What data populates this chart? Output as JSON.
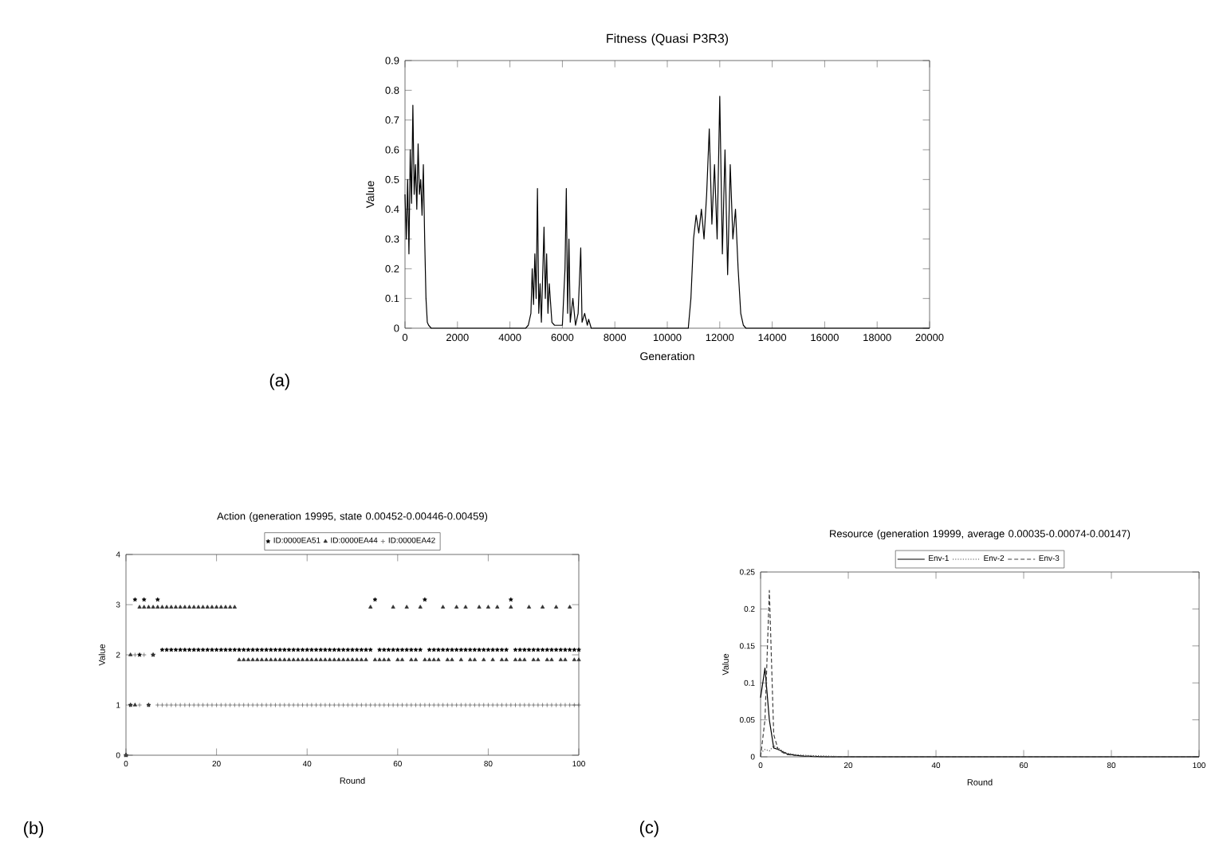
{
  "chart_data": [
    {
      "type": "line",
      "title": "Fitness (Quasi P3R3)",
      "xlabel": "Generation",
      "ylabel": "Value",
      "xlim": [
        0,
        20000
      ],
      "ylim": [
        0,
        0.9
      ],
      "xticks": [
        0,
        2000,
        4000,
        6000,
        8000,
        10000,
        12000,
        14000,
        16000,
        18000,
        20000
      ],
      "yticks": [
        0,
        0.1,
        0.2,
        0.3,
        0.4,
        0.5,
        0.6,
        0.7,
        0.8,
        0.9
      ],
      "annotations": [
        "(a)"
      ],
      "line_style": "solid",
      "series": [
        {
          "color": "#000000",
          "x": [
            0,
            50,
            100,
            150,
            200,
            250,
            300,
            350,
            400,
            450,
            500,
            550,
            600,
            650,
            700,
            750,
            800,
            850,
            900,
            1000,
            4600,
            4700,
            4800,
            4850,
            4900,
            4950,
            5000,
            5050,
            5100,
            5150,
            5200,
            5300,
            5350,
            5400,
            5450,
            5500,
            5600,
            5700,
            6000,
            6100,
            6150,
            6200,
            6250,
            6300,
            6400,
            6500,
            6600,
            6700,
            6750,
            6850,
            6950,
            7000,
            7100,
            10800,
            10900,
            11000,
            11100,
            11200,
            11300,
            11400,
            11500,
            11600,
            11700,
            11800,
            11900,
            12000,
            12100,
            12200,
            12300,
            12400,
            12500,
            12600,
            12700,
            12800,
            12900,
            13000,
            20000
          ],
          "values": [
            0.45,
            0.3,
            0.5,
            0.25,
            0.6,
            0.42,
            0.75,
            0.45,
            0.55,
            0.4,
            0.62,
            0.45,
            0.5,
            0.38,
            0.55,
            0.3,
            0.1,
            0.02,
            0.01,
            0,
            0,
            0.01,
            0.05,
            0.2,
            0.08,
            0.25,
            0.1,
            0.47,
            0.05,
            0.15,
            0.02,
            0.34,
            0.1,
            0.25,
            0.05,
            0.15,
            0.02,
            0.01,
            0.01,
            0.2,
            0.47,
            0.05,
            0.3,
            0.02,
            0.1,
            0.01,
            0.05,
            0.27,
            0.02,
            0.05,
            0.01,
            0.03,
            0,
            0,
            0.1,
            0.3,
            0.38,
            0.32,
            0.4,
            0.3,
            0.45,
            0.67,
            0.35,
            0.55,
            0.3,
            0.78,
            0.25,
            0.6,
            0.18,
            0.55,
            0.3,
            0.4,
            0.2,
            0.05,
            0.01,
            0,
            0
          ]
        }
      ]
    },
    {
      "type": "scatter",
      "title": "Action (generation 19995, state 0.00452-0.00446-0.00459)",
      "xlabel": "Round",
      "ylabel": "Value",
      "xlim": [
        0,
        100
      ],
      "ylim": [
        0,
        4
      ],
      "xticks": [
        0,
        20,
        40,
        60,
        80,
        100
      ],
      "yticks": [
        0,
        1,
        2,
        3,
        4
      ],
      "legend": "top",
      "annotations": [
        "(b)"
      ],
      "x": [
        0,
        1,
        2,
        3,
        4,
        5,
        6,
        7,
        8,
        9,
        10,
        11,
        12,
        13,
        14,
        15,
        16,
        17,
        18,
        19,
        20,
        21,
        22,
        23,
        24,
        25,
        26,
        27,
        28,
        29,
        30,
        31,
        32,
        33,
        34,
        35,
        36,
        37,
        38,
        39,
        40,
        41,
        42,
        43,
        44,
        45,
        46,
        47,
        48,
        49,
        50,
        51,
        52,
        53,
        54,
        55,
        56,
        57,
        58,
        59,
        60,
        61,
        62,
        63,
        64,
        65,
        66,
        67,
        68,
        69,
        70,
        71,
        72,
        73,
        74,
        75,
        76,
        77,
        78,
        79,
        80,
        81,
        82,
        83,
        84,
        85,
        86,
        87,
        88,
        89,
        90,
        91,
        92,
        93,
        94,
        95,
        96,
        97,
        98,
        99,
        100
      ],
      "series": [
        {
          "name": "ID:0000EA51",
          "color": "#000000",
          "marker": "star",
          "values": [
            0,
            1,
            3.1,
            2,
            3.1,
            1,
            2,
            3.1,
            2.1,
            2.1,
            2.1,
            2.1,
            2.1,
            2.1,
            2.1,
            2.1,
            2.1,
            2.1,
            2.1,
            2.1,
            2.1,
            2.1,
            2.1,
            2.1,
            2.1,
            2.1,
            2.1,
            2.1,
            2.1,
            2.1,
            2.1,
            2.1,
            2.1,
            2.1,
            2.1,
            2.1,
            2.1,
            2.1,
            2.1,
            2.1,
            2.1,
            2.1,
            2.1,
            2.1,
            2.1,
            2.1,
            2.1,
            2.1,
            2.1,
            2.1,
            2.1,
            2.1,
            2.1,
            2.1,
            2.1,
            3.1,
            2.1,
            2.1,
            2.1,
            2.1,
            2.1,
            2.1,
            2.1,
            2.1,
            2.1,
            2.1,
            3.1,
            2.1,
            2.1,
            2.1,
            2.1,
            2.1,
            2.1,
            2.1,
            2.1,
            2.1,
            2.1,
            2.1,
            2.1,
            2.1,
            2.1,
            2.1,
            2.1,
            2.1,
            2.1,
            3.1,
            2.1,
            2.1,
            2.1,
            2.1,
            2.1,
            2.1,
            2.1,
            2.1,
            2.1,
            2.1,
            2.1,
            2.1,
            2.1,
            2.1,
            2.1
          ]
        },
        {
          "name": "ID:0000EA44",
          "color": "#333333",
          "marker": "triangle",
          "values": [
            0,
            2,
            1,
            2.95,
            2.95,
            2.95,
            2.95,
            2.95,
            2.95,
            2.95,
            2.95,
            2.95,
            2.95,
            2.95,
            2.95,
            2.95,
            2.95,
            2.95,
            2.95,
            2.95,
            2.95,
            2.95,
            2.95,
            2.95,
            2.95,
            1.9,
            1.9,
            1.9,
            1.9,
            1.9,
            1.9,
            1.9,
            1.9,
            1.9,
            1.9,
            1.9,
            1.9,
            1.9,
            1.9,
            1.9,
            1.9,
            1.9,
            1.9,
            1.9,
            1.9,
            1.9,
            1.9,
            1.9,
            1.9,
            1.9,
            1.9,
            1.9,
            1.9,
            1.9,
            2.95,
            1.9,
            1.9,
            1.9,
            1.9,
            2.95,
            1.9,
            1.9,
            2.95,
            1.9,
            1.9,
            2.95,
            1.9,
            1.9,
            1.9,
            1.9,
            2.95,
            1.9,
            1.9,
            2.95,
            1.9,
            2.95,
            1.9,
            1.9,
            2.95,
            1.9,
            2.95,
            1.9,
            2.95,
            1.9,
            1.9,
            2.95,
            1.9,
            1.9,
            1.9,
            2.95,
            1.9,
            1.9,
            2.95,
            1.9,
            1.9,
            2.95,
            1.9,
            1.9,
            2.95,
            1.9,
            1.9
          ]
        },
        {
          "name": "ID:0000EA42",
          "color": "#555555",
          "marker": "cross",
          "values": [
            0,
            1,
            2,
            1,
            2,
            1,
            2,
            1,
            1,
            1,
            1,
            1,
            1,
            1,
            1,
            1,
            1,
            1,
            1,
            1,
            1,
            1,
            1,
            1,
            1,
            1,
            1,
            1,
            1,
            1,
            1,
            1,
            1,
            1,
            1,
            1,
            1,
            1,
            1,
            1,
            1,
            1,
            1,
            1,
            1,
            1,
            1,
            1,
            1,
            1,
            1,
            1,
            1,
            1,
            1,
            1,
            1,
            1,
            1,
            1,
            1,
            1,
            1,
            1,
            1,
            1,
            1,
            1,
            1,
            1,
            1,
            1,
            1,
            1,
            1,
            1,
            1,
            1,
            1,
            1,
            1,
            1,
            1,
            1,
            1,
            1,
            1,
            1,
            1,
            1,
            1,
            1,
            1,
            1,
            1,
            1,
            1,
            1,
            1,
            1,
            1
          ]
        }
      ]
    },
    {
      "type": "line",
      "title": "Resource (generation 19999, average 0.00035-0.00074-0.00147)",
      "xlabel": "Round",
      "ylabel": "Value",
      "xlim": [
        0,
        100
      ],
      "ylim": [
        0,
        0.25
      ],
      "xticks": [
        0,
        20,
        40,
        60,
        80,
        100
      ],
      "yticks": [
        0,
        0.05,
        0.1,
        0.15,
        0.2,
        0.25
      ],
      "legend": "top",
      "annotations": [
        "(c)"
      ],
      "x": [
        0,
        1,
        2,
        3,
        4,
        5,
        6,
        8,
        10,
        15,
        20,
        30,
        40,
        50,
        60,
        70,
        80,
        90,
        100
      ],
      "series": [
        {
          "name": "Env-1",
          "color": "#000000",
          "line_style": "solid",
          "values": [
            0.08,
            0.12,
            0.05,
            0.012,
            0.01,
            0.007,
            0.004,
            0.002,
            0.001,
            0,
            0,
            0,
            0,
            0,
            0,
            0,
            0,
            0,
            0
          ]
        },
        {
          "name": "Env-2",
          "color": "#555555",
          "line_style": "dotted",
          "values": [
            0.005,
            0.01,
            0.008,
            0.015,
            0.012,
            0.008,
            0.005,
            0.003,
            0.002,
            0.001,
            0,
            0,
            0,
            0,
            0,
            0,
            0,
            0,
            0
          ]
        },
        {
          "name": "Env-3",
          "color": "#404040",
          "line_style": "dashed",
          "values": [
            0,
            0.05,
            0.225,
            0.03,
            0.01,
            0.006,
            0.003,
            0.002,
            0.001,
            0,
            0,
            0,
            0,
            0,
            0,
            0,
            0,
            0,
            0
          ]
        }
      ]
    }
  ]
}
